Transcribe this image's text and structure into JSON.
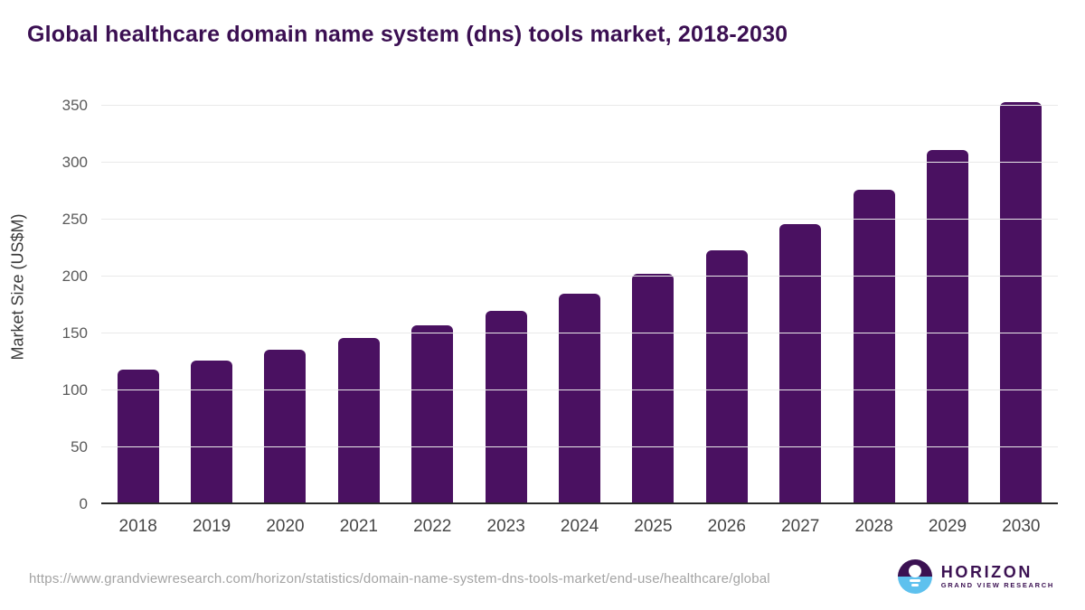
{
  "page_title": "Global healthcare domain name system (dns) tools market, 2018-2030",
  "chart_data": {
    "type": "bar",
    "title": "Global healthcare domain name system (dns) tools market, 2018-2030",
    "categories": [
      "2018",
      "2019",
      "2020",
      "2021",
      "2022",
      "2023",
      "2024",
      "2025",
      "2026",
      "2027",
      "2028",
      "2029",
      "2030"
    ],
    "values": [
      118,
      126,
      136,
      146,
      157,
      170,
      185,
      202,
      223,
      246,
      276,
      311,
      353
    ],
    "xlabel": "",
    "ylabel": "Market Size (US$M)",
    "ylim": [
      0,
      350
    ],
    "yticks": [
      0,
      50,
      100,
      150,
      200,
      250,
      300,
      350
    ],
    "grid": "horizontal",
    "legend": "none",
    "bar_color": "#4a1161"
  },
  "footer": {
    "source_url": "https://www.grandviewresearch.com/horizon/statistics/domain-name-system-dns-tools-market/end-use/healthcare/global",
    "logo": {
      "name": "HORIZON",
      "subtitle": "GRAND VIEW RESEARCH"
    }
  },
  "colors": {
    "bar": "#4a1161",
    "title_text": "#3b0f52",
    "axis_line": "#2a2a2a",
    "gridline": "#e9e9e9",
    "y_tick_text": "#5a5a5a",
    "x_tick_text": "#474747",
    "url_text": "#a3a3a3",
    "logo_purple": "#3b1152",
    "logo_blue": "#5ec1ee"
  }
}
